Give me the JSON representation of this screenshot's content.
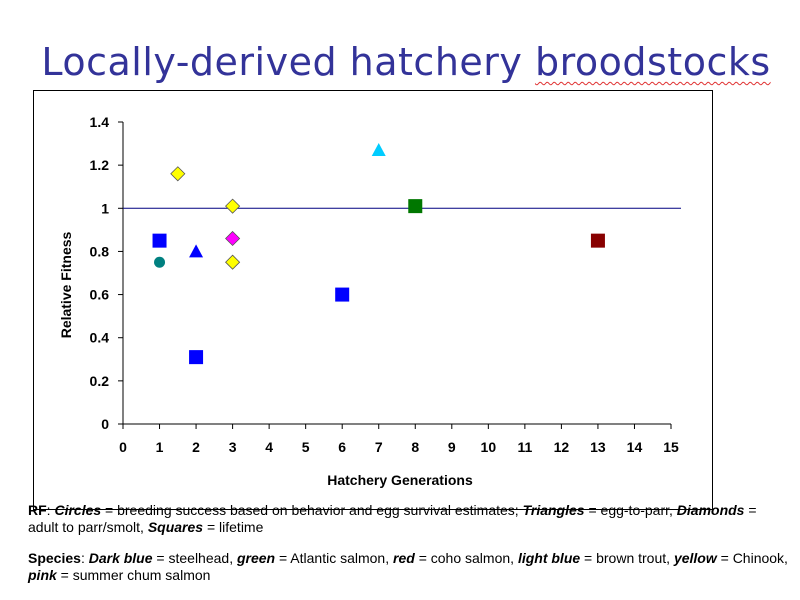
{
  "slide": {
    "title_part1": "Locally-derived hatchery ",
    "title_part2": "broodstocks"
  },
  "legend_notes": {
    "rf_label": "RF",
    "rf_sep": ":  ",
    "circles": "Circles",
    "circles_text": " = breeding success based on behavior and egg survival estimates; ",
    "triangles": "Triangles",
    "triangles_text": " = egg-to-parr, ",
    "diamonds": "Diamonds",
    "diamonds_text": " = adult to parr/smolt, ",
    "squares": "Squares",
    "squares_text": " = lifetime",
    "species_label": "Species",
    "species_sep": ": ",
    "dark_blue": "Dark blue",
    "dark_blue_text": " = steelhead, ",
    "green": "green",
    "green_text": " = Atlantic salmon, ",
    "red": "red",
    "red_text": " = coho salmon, ",
    "light_blue": "light blue",
    "light_blue_text": " = brown trout, ",
    "yellow": "yellow",
    "yellow_text": " = Chinook, ",
    "pink": "pink",
    "pink_text": " = summer chum salmon"
  },
  "chart_data": {
    "type": "scatter",
    "xlabel": "Hatchery Generations",
    "ylabel": "Relative Fitness",
    "xlim": [
      0,
      15
    ],
    "ylim": [
      0,
      1.4
    ],
    "xticks": [
      0,
      1,
      2,
      3,
      4,
      5,
      6,
      7,
      8,
      9,
      10,
      11,
      12,
      13,
      14,
      15
    ],
    "yticks": [
      0,
      0.2,
      0.4,
      0.6,
      0.8,
      1,
      1.2,
      1.4
    ],
    "reference_line_y": 1,
    "colors": {
      "dark_blue": "#0000ff",
      "green": "#007700",
      "red": "#880000",
      "light_blue": "#00ccff",
      "yellow": "#ffff00",
      "pink": "#ff00ff",
      "teal": "#008080"
    },
    "points": [
      {
        "x": 1,
        "y": 0.75,
        "shape": "circle",
        "color": "teal"
      },
      {
        "x": 1,
        "y": 0.85,
        "shape": "square",
        "color": "dark_blue"
      },
      {
        "x": 2,
        "y": 0.8,
        "shape": "triangle",
        "color": "dark_blue"
      },
      {
        "x": 2,
        "y": 0.31,
        "shape": "square",
        "color": "dark_blue"
      },
      {
        "x": 1.5,
        "y": 1.16,
        "shape": "diamond",
        "color": "yellow"
      },
      {
        "x": 3,
        "y": 1.01,
        "shape": "diamond",
        "color": "yellow"
      },
      {
        "x": 3,
        "y": 0.86,
        "shape": "diamond",
        "color": "pink"
      },
      {
        "x": 3,
        "y": 0.75,
        "shape": "diamond",
        "color": "yellow"
      },
      {
        "x": 6,
        "y": 0.6,
        "shape": "square",
        "color": "dark_blue"
      },
      {
        "x": 7,
        "y": 1.27,
        "shape": "triangle",
        "color": "light_blue"
      },
      {
        "x": 8,
        "y": 1.01,
        "shape": "square",
        "color": "green"
      },
      {
        "x": 13,
        "y": 0.85,
        "shape": "square",
        "color": "red"
      }
    ]
  }
}
